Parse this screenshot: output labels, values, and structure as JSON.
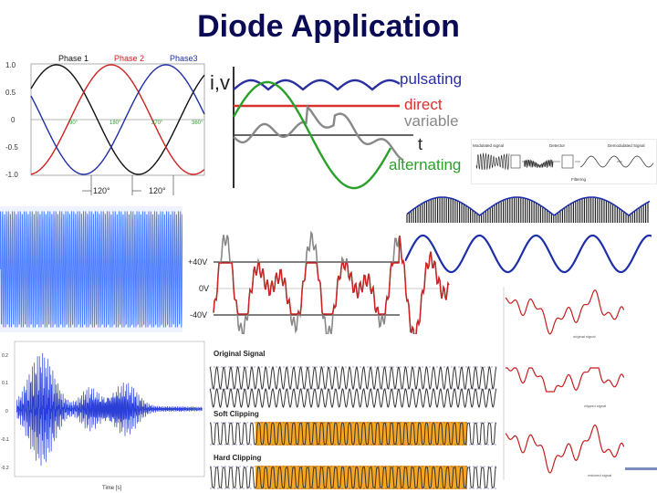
{
  "title": "Diode Application",
  "colors": {
    "title": "#0b0b55",
    "phase1": "#111111",
    "phase2": "#d22020",
    "phase3": "#1f2fa8",
    "pulsating": "#2a2fa0",
    "direct": "#d93030",
    "variable": "#888888",
    "alternating": "#2aa02a",
    "blue_wave": "#4f7fff",
    "audio": "#2a3fd6",
    "clip_fill": "#f5a623"
  },
  "phase_plot": {
    "legend": [
      "Phase 1",
      "Phase 2",
      "Phase3"
    ],
    "y_ticks": [
      "1.0",
      "0.5",
      "0",
      "-0.5",
      "-1.0"
    ],
    "degree_labels": [
      "90°",
      "180°",
      "270°",
      "360°"
    ],
    "spacing_labels": [
      "120°",
      "120°"
    ]
  },
  "signal_types": {
    "axis_label": "i,v",
    "time_label": "t",
    "labels": [
      "pulsating",
      "direct",
      "variable",
      "alternating"
    ]
  },
  "demodulator": {
    "labels": [
      "Modulated signal",
      "Detector",
      "Demodulated Signal",
      "Filtering"
    ]
  },
  "voltage_plot": {
    "labels": [
      "+40V",
      "0V",
      "-40V"
    ]
  },
  "clipping": {
    "labels": [
      "Original  Signal",
      "Soft Clipping",
      "Hard Clipping"
    ]
  },
  "audio_plot": {
    "y_ticks": [
      "0.2",
      "0.1",
      "0",
      "-0.1",
      "-0.2"
    ],
    "x_label": "Time [s]"
  },
  "red_signals": {
    "captions": [
      "original signal",
      "clipped signal",
      "restored signal"
    ]
  }
}
